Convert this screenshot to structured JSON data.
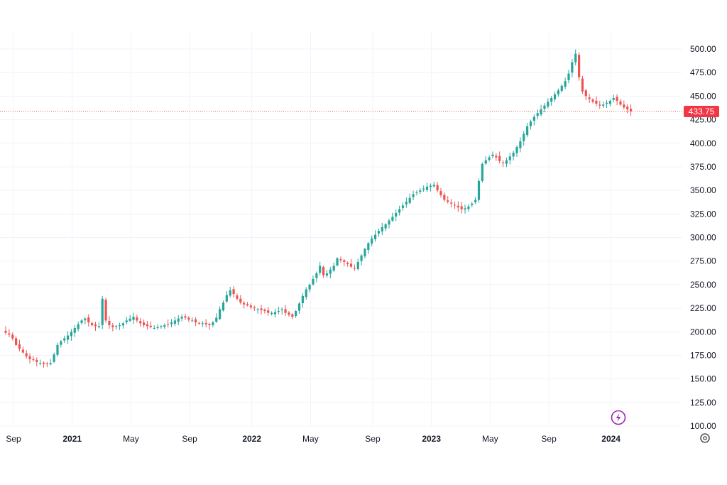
{
  "chart_data": {
    "type": "candlestick",
    "y_ticks": [
      "500.00",
      "475.00",
      "450.00",
      "425.00",
      "400.00",
      "375.00",
      "350.00",
      "325.00",
      "300.00",
      "275.00",
      "250.00",
      "225.00",
      "200.00",
      "175.00",
      "150.00",
      "125.00",
      "100.00"
    ],
    "y_tick_values": [
      500,
      475,
      450,
      425,
      400,
      375,
      350,
      325,
      300,
      275,
      250,
      225,
      200,
      175,
      150,
      125,
      100
    ],
    "ylim": [
      100,
      500
    ],
    "x_ticks": [
      {
        "label": "Sep",
        "week": 0,
        "bold": false
      },
      {
        "label": "2021",
        "week": 17,
        "bold": true
      },
      {
        "label": "May",
        "week": 34,
        "bold": false
      },
      {
        "label": "Sep",
        "week": 51,
        "bold": false
      },
      {
        "label": "2022",
        "week": 69,
        "bold": true
      },
      {
        "label": "May",
        "week": 86,
        "bold": false
      },
      {
        "label": "Sep",
        "week": 104,
        "bold": false
      },
      {
        "label": "2023",
        "week": 121,
        "bold": true
      },
      {
        "label": "May",
        "week": 138,
        "bold": false
      },
      {
        "label": "Sep",
        "week": 155,
        "bold": false
      },
      {
        "label": "2024",
        "week": 173,
        "bold": true
      }
    ],
    "last_price": "433.75",
    "last_price_value": 433.75,
    "colors": {
      "up": "#26a69a",
      "down": "#ef5350",
      "grid": "#f0f3fa",
      "price_line": "#ef5350",
      "badge": "#f23645",
      "icon": "#9c27b0"
    },
    "closes": [
      199,
      197,
      193,
      186,
      182,
      178,
      174,
      171,
      170,
      168,
      167,
      166,
      166,
      167,
      176,
      186,
      190,
      193,
      196,
      200,
      204,
      208,
      212,
      214,
      210,
      207,
      206,
      206,
      235,
      212,
      207,
      205,
      206,
      207,
      209,
      212,
      214,
      216,
      212,
      209,
      207,
      206,
      205,
      204,
      205,
      206,
      207,
      208,
      210,
      212,
      214,
      216,
      215,
      213,
      212,
      210,
      209,
      209,
      208,
      207,
      210,
      215,
      224,
      231,
      239,
      244,
      240,
      235,
      231,
      229,
      228,
      226,
      225,
      224,
      223,
      222,
      220,
      220,
      221,
      222,
      224,
      220,
      218,
      216,
      222,
      230,
      238,
      245,
      250,
      256,
      262,
      270,
      260,
      262,
      266,
      270,
      278,
      276,
      274,
      272,
      269,
      267,
      274,
      281,
      288,
      294,
      299,
      303,
      307,
      311,
      314,
      318,
      322,
      326,
      330,
      334,
      338,
      342,
      346,
      348,
      350,
      352,
      354,
      355,
      356,
      350,
      345,
      340,
      338,
      336,
      334,
      332,
      330,
      331,
      333,
      336,
      340,
      360,
      378,
      382,
      385,
      388,
      385,
      381,
      379,
      382,
      386,
      390,
      396,
      402,
      410,
      418,
      423,
      428,
      432,
      436,
      440,
      444,
      448,
      452,
      456,
      461,
      466,
      474,
      486,
      495,
      470,
      455,
      450,
      447,
      444,
      442,
      440,
      441,
      443,
      445,
      448,
      445,
      441,
      438,
      436,
      433.75
    ]
  }
}
